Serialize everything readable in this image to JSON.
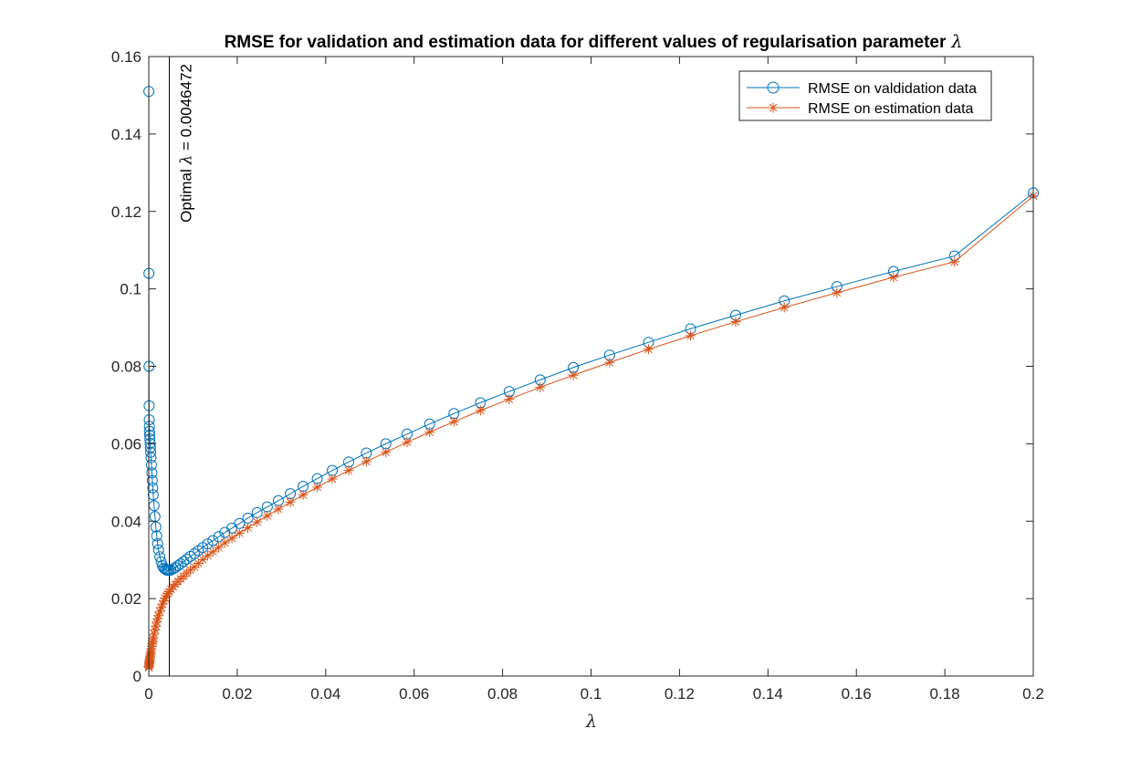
{
  "chart_data": {
    "type": "line",
    "title": "RMSE for validation and estimation data for different values of regularisation parameter",
    "title_symbol": "λ",
    "xlabel": "λ",
    "ylabel": "",
    "xlim": [
      0,
      0.2
    ],
    "ylim": [
      0,
      0.16
    ],
    "xticks": [
      0,
      0.02,
      0.04,
      0.06,
      0.08,
      0.1,
      0.12,
      0.14,
      0.16,
      0.18,
      0.2
    ],
    "xtick_labels": [
      "0",
      "0.02",
      "0.04",
      "0.06",
      "0.08",
      "0.1",
      "0.12",
      "0.14",
      "0.16",
      "0.18",
      "0.2"
    ],
    "yticks": [
      0,
      0.02,
      0.04,
      0.06,
      0.08,
      0.1,
      0.12,
      0.14,
      0.16
    ],
    "ytick_labels": [
      "0",
      "0.02",
      "0.04",
      "0.06",
      "0.08",
      "0.1",
      "0.12",
      "0.14",
      "0.16"
    ],
    "grid": false,
    "legend_position": "top-right",
    "annotation": {
      "x": 0.0046472,
      "text_prefix": "Optimal",
      "symbol": "λ",
      "text_suffix": "= 0.0046472"
    },
    "series": [
      {
        "name": "RMSE on valdidation data",
        "color": "#0072BD",
        "marker": "circle",
        "x": [
          1e-05,
          3e-05,
          5e-05,
          8e-05,
          0.0001,
          0.00013,
          0.00016,
          0.0002,
          0.00025,
          0.0003,
          0.00036,
          0.00042,
          0.0005,
          0.0006,
          0.0007,
          0.0008,
          0.0009,
          0.001,
          0.0012,
          0.0014,
          0.0016,
          0.0018,
          0.002,
          0.0022,
          0.0025,
          0.0028,
          0.0031,
          0.0034,
          0.0037,
          0.004,
          0.0043,
          0.0046,
          0.005,
          0.0055,
          0.006,
          0.0066,
          0.0072,
          0.0079,
          0.0086,
          0.0094,
          0.0103,
          0.0112,
          0.0122,
          0.0133,
          0.0145,
          0.0158,
          0.0172,
          0.0188,
          0.0205,
          0.0224,
          0.0245,
          0.0268,
          0.0293,
          0.032,
          0.0349,
          0.0381,
          0.0415,
          0.0452,
          0.0492,
          0.0536,
          0.0584,
          0.0635,
          0.069,
          0.075,
          0.0815,
          0.0885,
          0.096,
          0.1042,
          0.113,
          0.1225,
          0.1327,
          0.1437,
          0.1556,
          0.1684,
          0.1822,
          0.2
        ],
        "y": [
          0.151,
          0.104,
          0.08,
          0.0698,
          0.0662,
          0.0645,
          0.0632,
          0.0622,
          0.0612,
          0.0601,
          0.059,
          0.0578,
          0.0564,
          0.0545,
          0.0525,
          0.0505,
          0.0486,
          0.0468,
          0.044,
          0.0412,
          0.0385,
          0.0362,
          0.0342,
          0.0326,
          0.0308,
          0.0295,
          0.0285,
          0.0279,
          0.0276,
          0.0274,
          0.0273,
          0.0273,
          0.0274,
          0.0277,
          0.028,
          0.0285,
          0.029,
          0.0296,
          0.0302,
          0.0309,
          0.0316,
          0.0324,
          0.0332,
          0.0341,
          0.035,
          0.036,
          0.0371,
          0.0382,
          0.0394,
          0.0408,
          0.0422,
          0.0437,
          0.0453,
          0.0471,
          0.049,
          0.051,
          0.0531,
          0.0553,
          0.0576,
          0.06,
          0.0625,
          0.0651,
          0.0678,
          0.0706,
          0.0735,
          0.0765,
          0.0797,
          0.0829,
          0.0862,
          0.0897,
          0.0932,
          0.0969,
          0.1006,
          0.1045,
          0.1085,
          0.1248
        ]
      },
      {
        "name": "RMSE on estimation data",
        "color": "#D95319",
        "marker": "asterisk",
        "x": [
          1e-05,
          3e-05,
          5e-05,
          8e-05,
          0.0001,
          0.00013,
          0.00016,
          0.0002,
          0.00025,
          0.0003,
          0.00036,
          0.00042,
          0.0005,
          0.0006,
          0.0007,
          0.0008,
          0.0009,
          0.001,
          0.0012,
          0.0014,
          0.0016,
          0.0018,
          0.002,
          0.0022,
          0.0025,
          0.0028,
          0.0031,
          0.0034,
          0.0037,
          0.004,
          0.0043,
          0.0046,
          0.005,
          0.0055,
          0.006,
          0.0066,
          0.0072,
          0.0079,
          0.0086,
          0.0094,
          0.0103,
          0.0112,
          0.0122,
          0.0133,
          0.0145,
          0.0158,
          0.0172,
          0.0188,
          0.0205,
          0.0224,
          0.0245,
          0.0268,
          0.0293,
          0.032,
          0.0349,
          0.0381,
          0.0415,
          0.0452,
          0.0492,
          0.0536,
          0.0584,
          0.0635,
          0.069,
          0.075,
          0.0815,
          0.0885,
          0.096,
          0.1042,
          0.113,
          0.1225,
          0.1327,
          0.1437,
          0.1556,
          0.1684,
          0.1822,
          0.2
        ],
        "y": [
          0.0022,
          0.0025,
          0.0028,
          0.0031,
          0.0033,
          0.0036,
          0.0039,
          0.0042,
          0.0046,
          0.005,
          0.0054,
          0.0058,
          0.0063,
          0.007,
          0.0077,
          0.0084,
          0.009,
          0.0096,
          0.0108,
          0.0119,
          0.0129,
          0.0139,
          0.0148,
          0.0156,
          0.0167,
          0.0177,
          0.0186,
          0.0194,
          0.0201,
          0.0207,
          0.0213,
          0.0218,
          0.0224,
          0.0231,
          0.0237,
          0.0244,
          0.0251,
          0.0258,
          0.0266,
          0.0274,
          0.0282,
          0.0291,
          0.0301,
          0.0311,
          0.0321,
          0.0332,
          0.0344,
          0.0356,
          0.0369,
          0.0383,
          0.0398,
          0.0414,
          0.0431,
          0.0449,
          0.0468,
          0.0488,
          0.0509,
          0.0531,
          0.0554,
          0.0578,
          0.0604,
          0.063,
          0.0657,
          0.0686,
          0.0715,
          0.0746,
          0.0777,
          0.081,
          0.0844,
          0.0879,
          0.0915,
          0.0952,
          0.099,
          0.103,
          0.107,
          0.124
        ]
      }
    ]
  }
}
